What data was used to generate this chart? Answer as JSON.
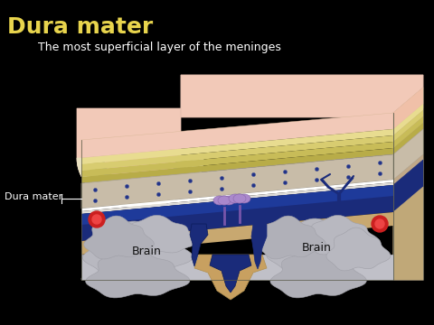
{
  "background_color": "#000000",
  "title": "Dura mater",
  "title_color": "#e8d44d",
  "title_fontsize": 18,
  "subtitle": "The most superficial layer of the meninges",
  "subtitle_color": "#ffffff",
  "subtitle_fontsize": 9,
  "label_dura_mater": "Dura mater",
  "label_brain_left": "Brain",
  "label_brain_right": "Brain",
  "label_color": "#ffffff",
  "label_fontsize": 8,
  "pink_top": "#f2c9b8",
  "yellow_layer1": "#e8dc90",
  "yellow_layer2": "#d8cc70",
  "yellow_layer3": "#c8bc58",
  "yellow_layer4": "#b8ac48",
  "bone_color": "#c8bca8",
  "bone_color2": "#b8ac98",
  "blue_dark": "#1a2b7a",
  "blue_mid": "#1e3a9a",
  "brain_gray": "#c0c0c8",
  "brain_gyrus": "#b8b8c0",
  "tan_nerve": "#c8a878",
  "red_vessel": "#cc2020",
  "purple_villus": "#9977bb"
}
